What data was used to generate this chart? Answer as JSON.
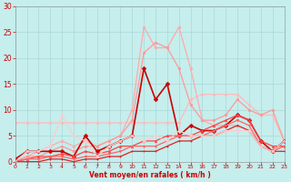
{
  "xlabel": "Vent moyen/en rafales ( km/h )",
  "xlim": [
    0,
    23
  ],
  "ylim": [
    0,
    30
  ],
  "xticks": [
    0,
    1,
    2,
    3,
    4,
    5,
    6,
    7,
    8,
    9,
    10,
    11,
    12,
    13,
    14,
    15,
    16,
    17,
    18,
    19,
    20,
    21,
    22,
    23
  ],
  "yticks": [
    0,
    5,
    10,
    15,
    20,
    25,
    30
  ],
  "background_color": "#c5eeed",
  "grid_color": "#aad8d8",
  "series": [
    {
      "x": [
        0,
        1,
        2,
        3,
        4,
        5,
        6,
        7,
        8,
        9,
        10,
        11,
        12,
        13,
        14,
        15,
        16,
        17,
        18,
        19,
        20,
        21,
        22,
        23
      ],
      "y": [
        7.5,
        7.5,
        7.5,
        7.5,
        7.5,
        7.5,
        7.5,
        7.5,
        7.5,
        7.5,
        7.5,
        7.5,
        7.5,
        7.5,
        7.5,
        12,
        13,
        13,
        13,
        13,
        11,
        9,
        9,
        4
      ],
      "color": "#ffbbbb",
      "lw": 0.9,
      "marker": "o",
      "ms": 2.0
    },
    {
      "x": [
        0,
        1,
        2,
        3,
        4,
        5,
        6,
        7,
        8,
        9,
        10,
        11,
        12,
        13,
        14,
        15,
        16,
        17,
        18,
        19,
        20,
        21,
        22,
        23
      ],
      "y": [
        0,
        1,
        2,
        3,
        4,
        3,
        4,
        3,
        4,
        5,
        10,
        26,
        22,
        22,
        26,
        18,
        8,
        7,
        7,
        7,
        6,
        3,
        2,
        4
      ],
      "color": "#ffaaaa",
      "lw": 0.9,
      "marker": "o",
      "ms": 2.0
    },
    {
      "x": [
        0,
        1,
        2,
        3,
        4,
        5,
        6,
        7,
        8,
        9,
        10,
        11,
        12,
        13,
        14,
        15,
        16,
        17,
        18,
        19,
        20,
        21,
        22,
        23
      ],
      "y": [
        0,
        1,
        1,
        2,
        3,
        2,
        3,
        3,
        4,
        5,
        8,
        21,
        23,
        22,
        18,
        11,
        8,
        8,
        9,
        12,
        10,
        9,
        10,
        4
      ],
      "color": "#ff9999",
      "lw": 0.9,
      "marker": "o",
      "ms": 2.0
    },
    {
      "x": [
        0,
        1,
        2,
        3,
        4,
        5,
        6,
        7,
        8,
        9,
        10,
        11,
        12,
        13,
        14,
        15,
        16,
        17,
        18,
        19,
        20,
        21,
        22,
        23
      ],
      "y": [
        0.5,
        2,
        2,
        2,
        2,
        1,
        5,
        2,
        3,
        4,
        5,
        18,
        12,
        15,
        5,
        7,
        6,
        6,
        7,
        9,
        8,
        4,
        2,
        4
      ],
      "color": "#cc0000",
      "lw": 1.2,
      "marker": "D",
      "ms": 2.5
    },
    {
      "x": [
        0,
        1,
        2,
        3,
        4,
        5,
        6,
        7,
        8,
        9,
        10,
        11,
        12,
        13,
        14,
        15,
        16,
        17,
        18,
        19,
        20,
        21,
        22,
        23
      ],
      "y": [
        0,
        0.5,
        1,
        1,
        1.5,
        1,
        2,
        1.5,
        2,
        3,
        3,
        4,
        4,
        5,
        5,
        5,
        6,
        7,
        8,
        9,
        8,
        4,
        3,
        3
      ],
      "color": "#ff4444",
      "lw": 0.9,
      "marker": "^",
      "ms": 2.0
    },
    {
      "x": [
        0,
        1,
        2,
        3,
        4,
        5,
        6,
        7,
        8,
        9,
        10,
        11,
        12,
        13,
        14,
        15,
        16,
        17,
        18,
        19,
        20,
        21,
        22,
        23
      ],
      "y": [
        0,
        0.5,
        0.5,
        1,
        1,
        0.5,
        1,
        1,
        1.5,
        2,
        3,
        3,
        3,
        4,
        5,
        5,
        5,
        6,
        7,
        8,
        7,
        3,
        2,
        3
      ],
      "color": "#ff6666",
      "lw": 0.9,
      "marker": "v",
      "ms": 2.0
    },
    {
      "x": [
        0,
        1,
        2,
        3,
        4,
        5,
        6,
        7,
        8,
        9,
        10,
        11,
        12,
        13,
        14,
        15,
        16,
        17,
        18,
        19,
        20,
        21,
        22,
        23
      ],
      "y": [
        0,
        0,
        0,
        0.5,
        0.5,
        0,
        0.5,
        0.5,
        1,
        1,
        2,
        2,
        2,
        3,
        4,
        4,
        5,
        5,
        6,
        7,
        6,
        3,
        2,
        2
      ],
      "color": "#dd2222",
      "lw": 0.9,
      "marker": ".",
      "ms": 2.0
    },
    {
      "x": [
        0,
        1,
        2,
        3,
        4,
        5,
        6,
        7,
        8,
        9,
        10,
        11,
        12,
        13,
        14,
        15,
        16,
        17,
        18,
        19,
        20,
        21,
        22,
        23
      ],
      "y": [
        0,
        2,
        2,
        3,
        9,
        5,
        4,
        1,
        3,
        4,
        5,
        4,
        5,
        4,
        6,
        5,
        5,
        5,
        6,
        6,
        6,
        3,
        2,
        4
      ],
      "color": "#ffcccc",
      "lw": 0.9,
      "marker": "o",
      "ms": 2.0
    }
  ]
}
